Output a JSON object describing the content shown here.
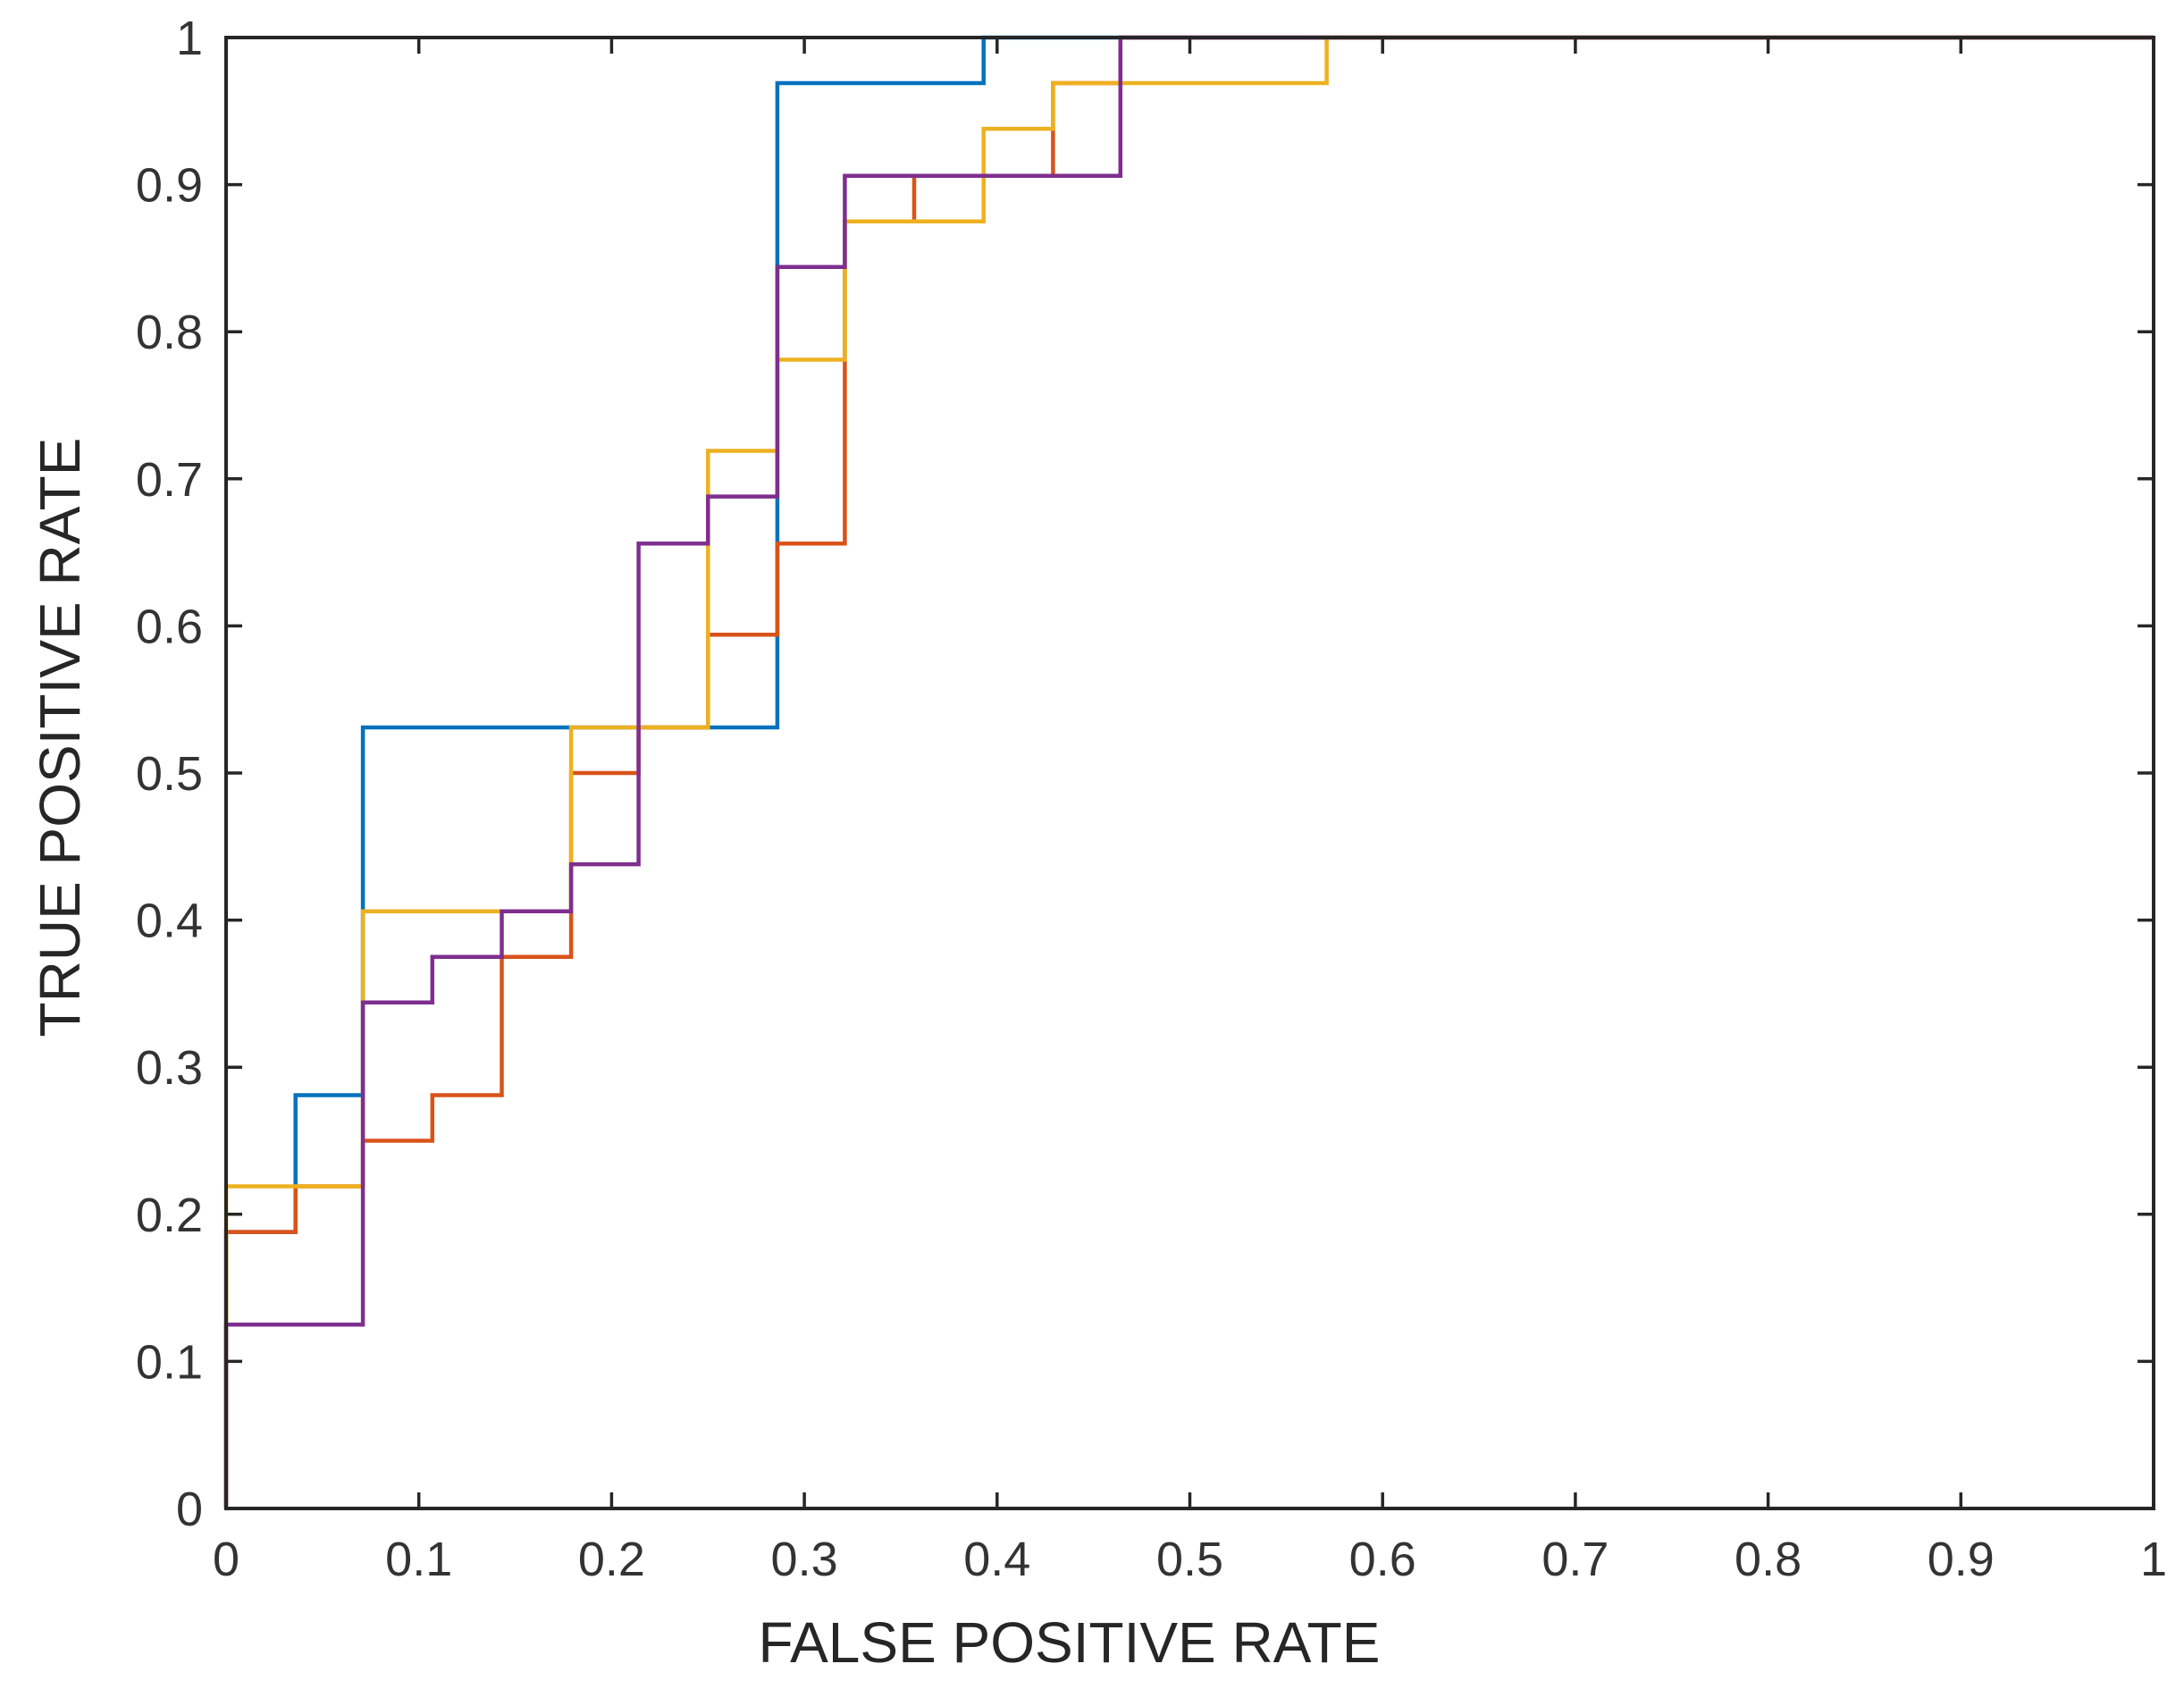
{
  "chart_data": {
    "type": "line",
    "title": "",
    "xlabel": "FALSE POSITIVE RATE",
    "ylabel": "TRUE POSITIVE RATE",
    "xlim": [
      0,
      1
    ],
    "ylim": [
      0,
      1
    ],
    "grid": false,
    "legend": "none",
    "x_ticks": [
      0,
      0.1,
      0.2,
      0.3,
      0.4,
      0.5,
      0.6,
      0.7,
      0.8,
      0.9,
      1
    ],
    "y_ticks": [
      0,
      0.1,
      0.2,
      0.3,
      0.4,
      0.5,
      0.6,
      0.7,
      0.8,
      0.9,
      1
    ],
    "x_tick_labels": [
      "0",
      "0.1",
      "0.2",
      "0.3",
      "0.4",
      "0.5",
      "0.6",
      "0.7",
      "0.8",
      "0.9",
      "1"
    ],
    "y_tick_labels": [
      "0",
      "0.1",
      "0.2",
      "0.3",
      "0.4",
      "0.5",
      "0.6",
      "0.7",
      "0.8",
      "0.9",
      "1"
    ],
    "series": [
      {
        "name": "blue",
        "color": "#0072BD",
        "points": [
          [
            0,
            0
          ],
          [
            0,
            0.188
          ],
          [
            0.036,
            0.188
          ],
          [
            0.036,
            0.281
          ],
          [
            0.071,
            0.281
          ],
          [
            0.071,
            0.531
          ],
          [
            0.286,
            0.531
          ],
          [
            0.286,
            0.969
          ],
          [
            0.393,
            0.969
          ],
          [
            0.393,
            1
          ],
          [
            1,
            1
          ]
        ]
      },
      {
        "name": "orange",
        "color": "#D95319",
        "points": [
          [
            0,
            0
          ],
          [
            0,
            0.188
          ],
          [
            0.036,
            0.188
          ],
          [
            0.036,
            0.219
          ],
          [
            0.071,
            0.219
          ],
          [
            0.071,
            0.25
          ],
          [
            0.107,
            0.25
          ],
          [
            0.107,
            0.281
          ],
          [
            0.143,
            0.281
          ],
          [
            0.143,
            0.375
          ],
          [
            0.179,
            0.375
          ],
          [
            0.179,
            0.5
          ],
          [
            0.214,
            0.5
          ],
          [
            0.214,
            0.531
          ],
          [
            0.25,
            0.531
          ],
          [
            0.25,
            0.594
          ],
          [
            0.286,
            0.594
          ],
          [
            0.286,
            0.656
          ],
          [
            0.321,
            0.656
          ],
          [
            0.321,
            0.875
          ],
          [
            0.357,
            0.875
          ],
          [
            0.357,
            0.906
          ],
          [
            0.429,
            0.906
          ],
          [
            0.429,
            0.969
          ],
          [
            0.464,
            0.969
          ],
          [
            0.464,
            1
          ],
          [
            1,
            1
          ]
        ]
      },
      {
        "name": "yellow",
        "color": "#EDB120",
        "points": [
          [
            0,
            0
          ],
          [
            0,
            0.219
          ],
          [
            0.071,
            0.219
          ],
          [
            0.071,
            0.406
          ],
          [
            0.143,
            0.406
          ],
          [
            0.179,
            0.406
          ],
          [
            0.179,
            0.531
          ],
          [
            0.25,
            0.531
          ],
          [
            0.25,
            0.719
          ],
          [
            0.286,
            0.719
          ],
          [
            0.286,
            0.781
          ],
          [
            0.321,
            0.781
          ],
          [
            0.321,
            0.875
          ],
          [
            0.393,
            0.875
          ],
          [
            0.393,
            0.938
          ],
          [
            0.429,
            0.938
          ],
          [
            0.429,
            0.969
          ],
          [
            0.571,
            0.969
          ],
          [
            0.571,
            1
          ],
          [
            1,
            1
          ]
        ]
      },
      {
        "name": "purple",
        "color": "#7E2F8E",
        "points": [
          [
            0,
            0
          ],
          [
            0,
            0.125
          ],
          [
            0.071,
            0.125
          ],
          [
            0.071,
            0.344
          ],
          [
            0.107,
            0.344
          ],
          [
            0.107,
            0.375
          ],
          [
            0.143,
            0.375
          ],
          [
            0.143,
            0.406
          ],
          [
            0.179,
            0.406
          ],
          [
            0.179,
            0.438
          ],
          [
            0.214,
            0.438
          ],
          [
            0.214,
            0.656
          ],
          [
            0.25,
            0.656
          ],
          [
            0.25,
            0.688
          ],
          [
            0.286,
            0.688
          ],
          [
            0.286,
            0.844
          ],
          [
            0.321,
            0.844
          ],
          [
            0.321,
            0.906
          ],
          [
            0.464,
            0.906
          ],
          [
            0.464,
            1
          ],
          [
            1,
            1
          ]
        ]
      }
    ]
  }
}
